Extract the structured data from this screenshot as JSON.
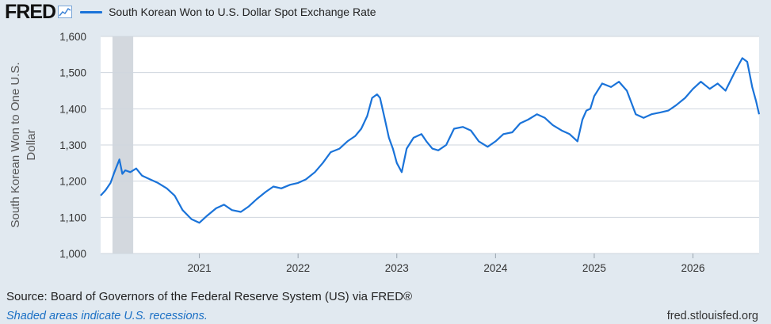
{
  "header": {
    "logo_text": "FRED",
    "legend_label": "South Korean Won to U.S. Dollar Spot Exchange Rate",
    "line_color": "#1a73d9"
  },
  "footer": {
    "source": "Source: Board of Governors of the Federal Reserve System (US) via FRED®",
    "recession_note": "Shaded areas indicate U.S. recessions.",
    "site": "fred.stlouisfed.org"
  },
  "chart_data": {
    "type": "line",
    "ylabel": "South Korean Won to One U.S. Dollar",
    "ylim": [
      1000,
      1600
    ],
    "yticks": [
      1000,
      1100,
      1200,
      1300,
      1400,
      1500,
      1600
    ],
    "ytick_labels": [
      "1,000",
      "1,100",
      "1,200",
      "1,300",
      "1,400",
      "1,500",
      "1,600"
    ],
    "xlim": [
      2020.0,
      2026.67
    ],
    "xticks": [
      2021,
      2022,
      2023,
      2024,
      2025,
      2026
    ],
    "xtick_labels": [
      "2021",
      "2022",
      "2023",
      "2024",
      "2025",
      "2026"
    ],
    "grid": true,
    "recessions": [
      {
        "start": 2020.12,
        "end": 2020.33
      }
    ],
    "series": [
      {
        "color": "#1a73d9",
        "x": [
          2020.0,
          2020.05,
          2020.1,
          2020.14,
          2020.19,
          2020.22,
          2020.25,
          2020.3,
          2020.36,
          2020.42,
          2020.5,
          2020.58,
          2020.67,
          2020.75,
          2020.83,
          2020.92,
          2021.0,
          2021.08,
          2021.17,
          2021.25,
          2021.33,
          2021.42,
          2021.5,
          2021.58,
          2021.67,
          2021.75,
          2021.83,
          2021.92,
          2022.0,
          2022.08,
          2022.17,
          2022.25,
          2022.33,
          2022.42,
          2022.5,
          2022.58,
          2022.64,
          2022.7,
          2022.75,
          2022.8,
          2022.83,
          2022.88,
          2022.92,
          2022.96,
          2023.0,
          2023.05,
          2023.1,
          2023.17,
          2023.25,
          2023.3,
          2023.36,
          2023.42,
          2023.5,
          2023.58,
          2023.67,
          2023.75,
          2023.83,
          2023.92,
          2024.0,
          2024.08,
          2024.17,
          2024.25,
          2024.33,
          2024.42,
          2024.5,
          2024.58,
          2024.67,
          2024.75,
          2024.83,
          2024.88,
          2024.92,
          2024.96,
          2025.0,
          2025.08,
          2025.17,
          2025.25,
          2025.33,
          2025.42,
          2025.5,
          2025.58,
          2025.67,
          2025.75,
          2025.83,
          2025.92,
          2026.0,
          2026.08,
          2026.17,
          2026.25,
          2026.33,
          2026.42,
          2026.46,
          2026.5,
          2026.55,
          2026.6,
          2026.64,
          2026.67
        ],
        "y": [
          1160,
          1175,
          1195,
          1225,
          1260,
          1220,
          1230,
          1225,
          1235,
          1215,
          1205,
          1195,
          1180,
          1160,
          1120,
          1095,
          1085,
          1105,
          1125,
          1135,
          1120,
          1115,
          1130,
          1150,
          1170,
          1185,
          1180,
          1190,
          1195,
          1205,
          1225,
          1250,
          1280,
          1290,
          1310,
          1325,
          1345,
          1380,
          1430,
          1440,
          1430,
          1370,
          1320,
          1290,
          1250,
          1225,
          1290,
          1320,
          1330,
          1310,
          1290,
          1285,
          1300,
          1345,
          1350,
          1340,
          1310,
          1295,
          1310,
          1330,
          1335,
          1360,
          1370,
          1385,
          1375,
          1355,
          1340,
          1330,
          1310,
          1370,
          1395,
          1400,
          1435,
          1470,
          1460,
          1475,
          1450,
          1385,
          1375,
          1385,
          1390,
          1395,
          1410,
          1430,
          1455,
          1475,
          1455,
          1470,
          1450,
          1500,
          1520,
          1540,
          1530,
          1460,
          1420,
          1385
        ]
      }
    ]
  }
}
